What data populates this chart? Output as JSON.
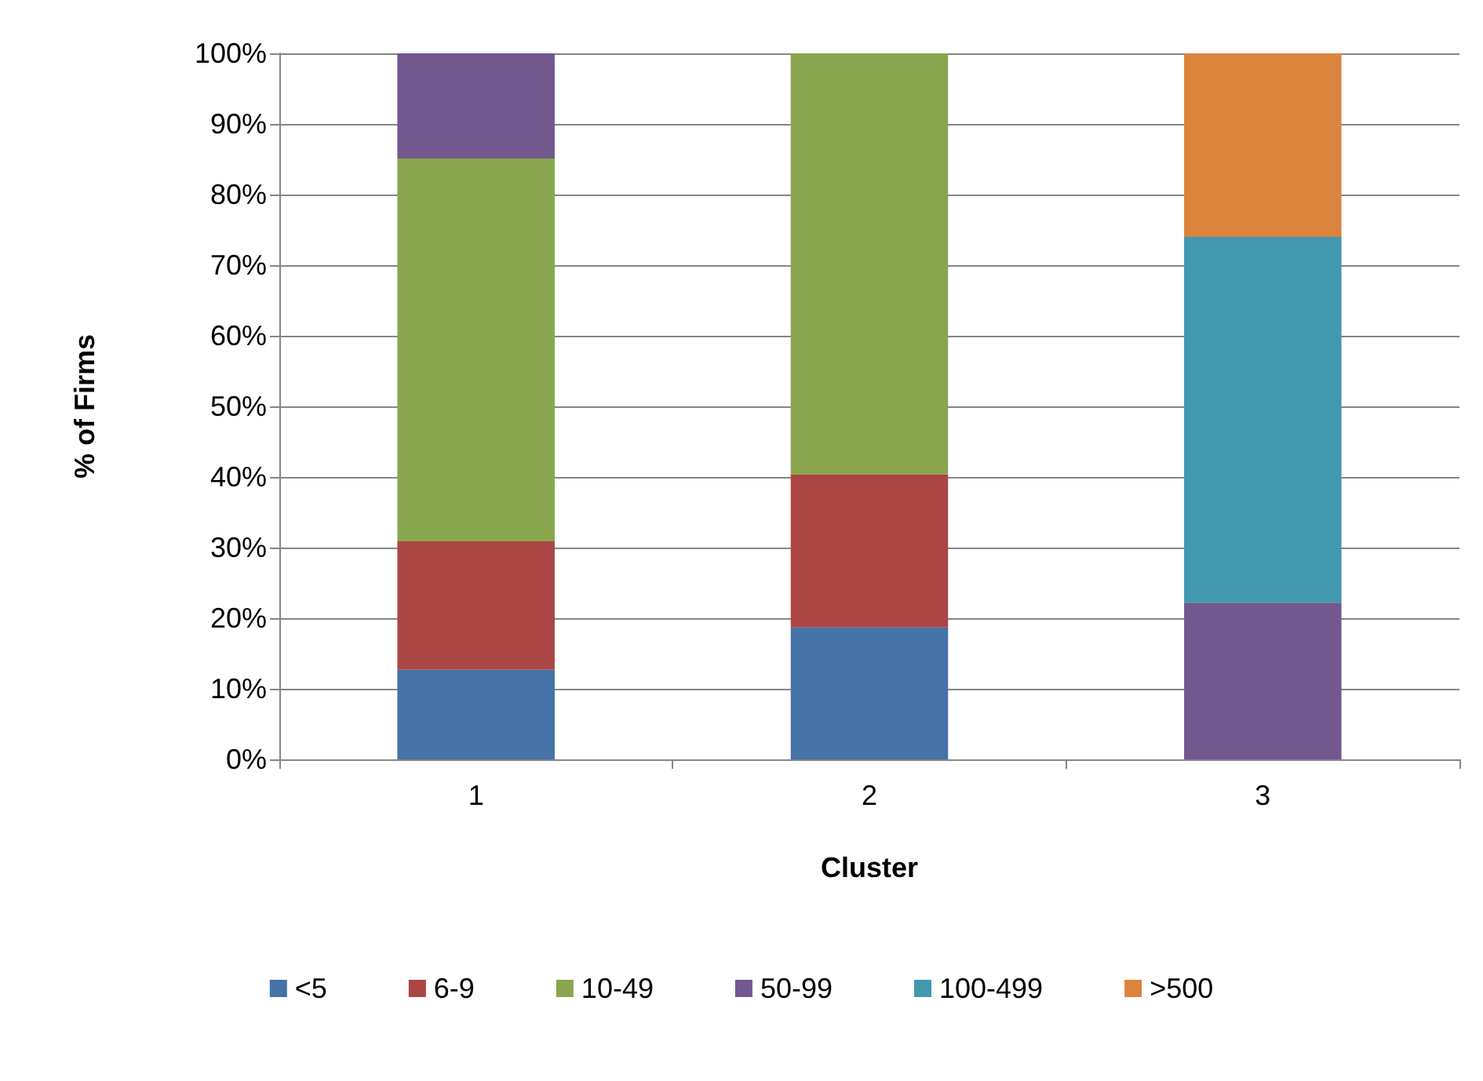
{
  "chart_data": {
    "type": "bar",
    "stacked": true,
    "xlabel": "Cluster",
    "ylabel": "% of Firms",
    "categories": [
      "1",
      "2",
      "3"
    ],
    "series": [
      {
        "name": "<5",
        "color": "#4572a7",
        "values": [
          12.7,
          18.7,
          null
        ]
      },
      {
        "name": "6-9",
        "color": "#aa4643",
        "values": [
          18.2,
          21.7,
          null
        ]
      },
      {
        "name": "10-49",
        "color": "#89a54e",
        "values": [
          54.2,
          59.6,
          null
        ]
      },
      {
        "name": "50-99",
        "color": "#71588f",
        "values": [
          14.9,
          null,
          22.2
        ]
      },
      {
        "name": "100-499",
        "color": "#4198af",
        "values": [
          null,
          null,
          51.8
        ]
      },
      {
        "name": ">500",
        "color": "#db843d",
        "values": [
          null,
          null,
          26.0
        ]
      }
    ],
    "ylim": [
      0,
      100
    ],
    "yticks": [
      {
        "value": 0,
        "label": "0%"
      },
      {
        "value": 10,
        "label": "10%"
      },
      {
        "value": 20,
        "label": "20%"
      },
      {
        "value": 30,
        "label": "30%"
      },
      {
        "value": 40,
        "label": "40%"
      },
      {
        "value": 50,
        "label": "50%"
      },
      {
        "value": 60,
        "label": "60%"
      },
      {
        "value": 70,
        "label": "70%"
      },
      {
        "value": 80,
        "label": "80%"
      },
      {
        "value": 90,
        "label": "90%"
      },
      {
        "value": 100,
        "label": "100%"
      }
    ],
    "grid": "y",
    "legend": "bottom"
  }
}
